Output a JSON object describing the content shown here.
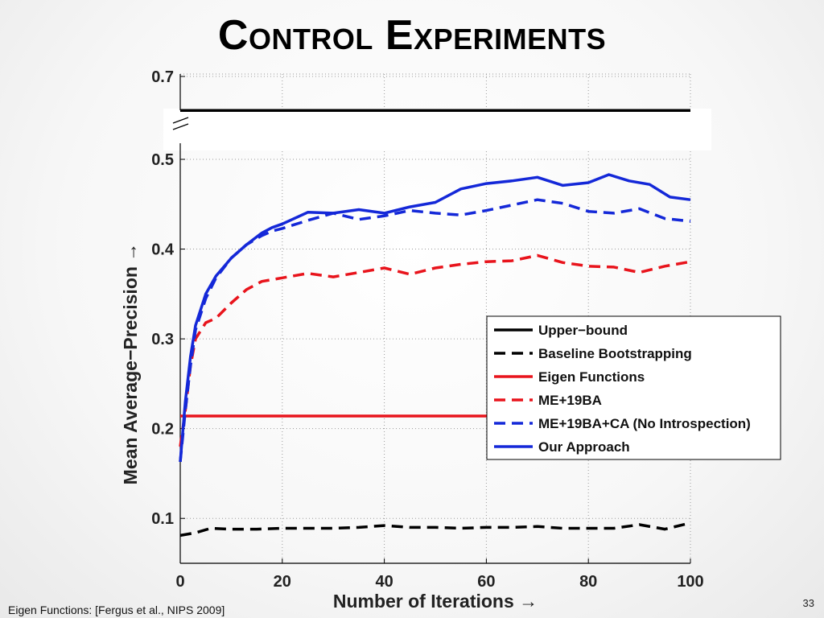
{
  "slide": {
    "title": "Control Experiments",
    "footnote": "Eigen Functions: [Fergus et al., NIPS 2009]",
    "page_number": "33"
  },
  "chart_data": {
    "type": "line",
    "title": "",
    "xlabel": "Number of Iterations →",
    "ylabel": "Mean Average−Precision →",
    "xlim": [
      0,
      100
    ],
    "ylim": [
      0.05,
      0.7
    ],
    "axis_break": [
      0.52,
      0.65
    ],
    "x_ticks": [
      "0",
      "20",
      "40",
      "60",
      "80",
      "100"
    ],
    "y_ticks": [
      "0.1",
      "0.2",
      "0.3",
      "0.4",
      "0.5",
      "0.7"
    ],
    "grid": true,
    "legend_position": "right-middle",
    "series": [
      {
        "name": "Upper−bound",
        "color": "#000000",
        "dash": "solid",
        "x": [
          0,
          100
        ],
        "y": [
          0.663,
          0.663
        ]
      },
      {
        "name": "Baseline Bootstrapping",
        "color": "#000000",
        "dash": "dashed",
        "x": [
          0,
          3,
          6,
          10,
          15,
          20,
          25,
          30,
          35,
          40,
          45,
          50,
          55,
          60,
          65,
          70,
          75,
          80,
          85,
          90,
          95,
          100
        ],
        "y": [
          0.081,
          0.084,
          0.089,
          0.088,
          0.088,
          0.089,
          0.089,
          0.089,
          0.09,
          0.092,
          0.09,
          0.09,
          0.089,
          0.09,
          0.09,
          0.091,
          0.089,
          0.089,
          0.089,
          0.093,
          0.088,
          0.095
        ]
      },
      {
        "name": "Eigen Functions",
        "color": "#e8141c",
        "dash": "solid",
        "x": [
          0,
          100
        ],
        "y": [
          0.214,
          0.214
        ]
      },
      {
        "name": "ME+19BA",
        "color": "#e8141c",
        "dash": "dashed",
        "x": [
          0,
          1,
          2,
          3,
          5,
          7,
          10,
          13,
          16,
          18,
          20,
          25,
          30,
          35,
          40,
          45,
          50,
          55,
          60,
          65,
          70,
          75,
          80,
          85,
          90,
          95,
          100
        ],
        "y": [
          0.18,
          0.22,
          0.27,
          0.3,
          0.318,
          0.323,
          0.34,
          0.355,
          0.364,
          0.366,
          0.368,
          0.373,
          0.369,
          0.374,
          0.379,
          0.372,
          0.379,
          0.383,
          0.386,
          0.387,
          0.393,
          0.385,
          0.381,
          0.38,
          0.374,
          0.381,
          0.386
        ]
      },
      {
        "name": "ME+19BA+CA (No Introspection)",
        "color": "#1428d8",
        "dash": "dashed",
        "x": [
          0,
          1,
          2,
          3,
          5,
          7,
          10,
          13,
          16,
          18,
          20,
          25,
          30,
          35,
          40,
          45,
          50,
          55,
          60,
          65,
          70,
          75,
          80,
          85,
          90,
          95,
          100
        ],
        "y": [
          0.163,
          0.22,
          0.27,
          0.31,
          0.345,
          0.368,
          0.39,
          0.405,
          0.415,
          0.42,
          0.423,
          0.432,
          0.44,
          0.433,
          0.437,
          0.443,
          0.44,
          0.438,
          0.443,
          0.449,
          0.455,
          0.451,
          0.442,
          0.44,
          0.445,
          0.434,
          0.431
        ]
      },
      {
        "name": "Our Approach",
        "color": "#1428d8",
        "dash": "solid",
        "x": [
          0,
          1,
          2,
          3,
          5,
          7,
          10,
          13,
          16,
          18,
          20,
          25,
          30,
          35,
          40,
          45,
          50,
          55,
          60,
          65,
          70,
          75,
          80,
          84,
          88,
          92,
          96,
          100
        ],
        "y": [
          0.163,
          0.23,
          0.28,
          0.315,
          0.35,
          0.37,
          0.39,
          0.405,
          0.418,
          0.424,
          0.428,
          0.441,
          0.44,
          0.444,
          0.44,
          0.447,
          0.452,
          0.467,
          0.473,
          0.476,
          0.48,
          0.471,
          0.474,
          0.483,
          0.476,
          0.472,
          0.458,
          0.455
        ]
      }
    ]
  }
}
